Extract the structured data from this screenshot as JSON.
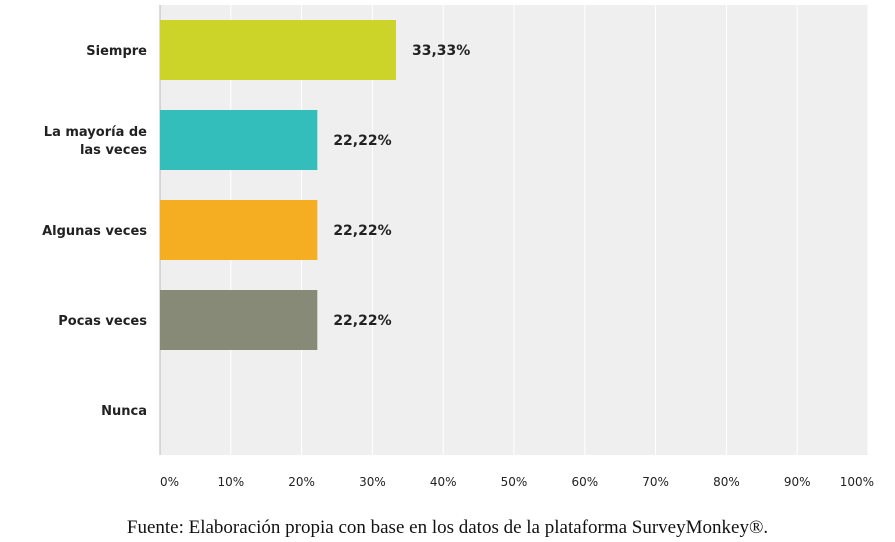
{
  "chart_data": {
    "type": "bar",
    "orientation": "horizontal",
    "categories": [
      "Siempre",
      "La mayoría de las veces",
      "Algunas veces",
      "Pocas veces",
      "Nunca"
    ],
    "category_label_lines": [
      [
        "Siempre"
      ],
      [
        "La mayoría de",
        "las veces"
      ],
      [
        "Algunas veces"
      ],
      [
        "Pocas veces"
      ],
      [
        "Nunca"
      ]
    ],
    "values": [
      33.33,
      22.22,
      22.22,
      22.22,
      0
    ],
    "value_labels": [
      "33,33%",
      "22,22%",
      "22,22%",
      "22,22%",
      ""
    ],
    "colors": [
      "#ccd42a",
      "#33bebc",
      "#f5ae21",
      "#888a78",
      "#cccccc"
    ],
    "xlim": [
      0,
      100
    ],
    "x_ticks": [
      "0%",
      "10%",
      "20%",
      "30%",
      "40%",
      "50%",
      "60%",
      "70%",
      "80%",
      "90%",
      "100%"
    ],
    "grid": true,
    "plot_background": "#efefef",
    "grid_color": "#ffffff"
  },
  "caption": "Fuente: Elaboración propia con base en los datos de la plataforma SurveyMonkey®."
}
